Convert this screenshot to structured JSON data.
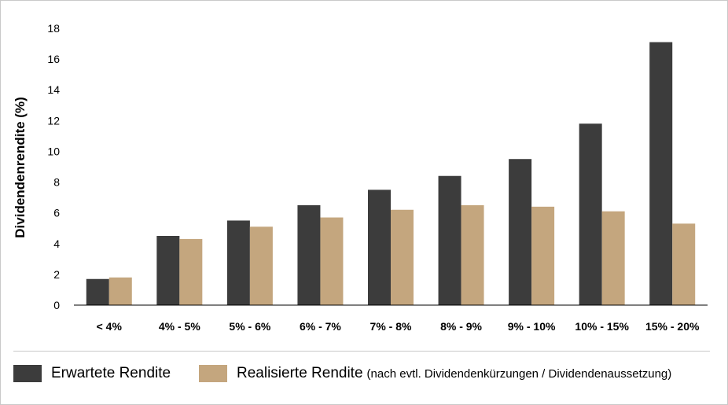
{
  "chart_data": {
    "type": "bar",
    "ylabel": "Dividendenrendite (%)",
    "ylim": [
      0,
      18
    ],
    "yticks": [
      "0",
      "2",
      "4",
      "6",
      "8",
      "10",
      "12",
      "14",
      "16",
      "18"
    ],
    "categories": [
      "< 4%",
      "4% - 5%",
      "5% - 6%",
      "6% - 7%",
      "7% - 8%",
      "8% - 9%",
      "9% - 10%",
      "10% - 15%",
      "15% - 20%"
    ],
    "series": [
      {
        "name": "Erwartete Rendite",
        "color": "#3c3c3c",
        "values": [
          1.7,
          4.5,
          5.5,
          6.5,
          7.5,
          8.4,
          9.5,
          11.8,
          17.1
        ]
      },
      {
        "name": "Realisierte Rendite",
        "color": "#c4a67e",
        "values": [
          1.8,
          4.3,
          5.1,
          5.7,
          6.2,
          6.5,
          6.4,
          6.1,
          5.3
        ]
      }
    ],
    "grid": false,
    "legend": "bottom"
  },
  "legend": {
    "expected_label": "Erwartete Rendite",
    "realized_label": "Realisierte Rendite",
    "realized_note": "(nach evtl. Dividendenkürzungen / Dividendenaussetzung)"
  }
}
